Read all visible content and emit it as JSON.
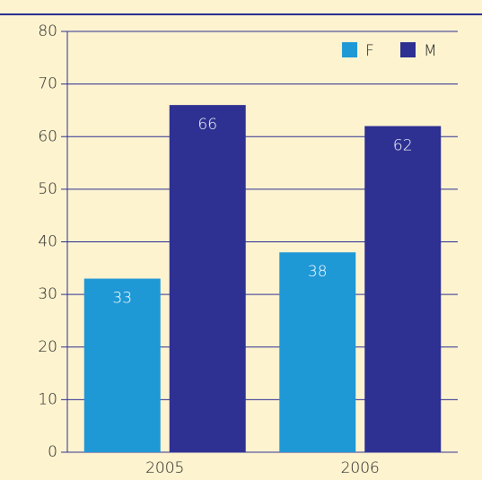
{
  "chart_data": {
    "type": "bar",
    "categories": [
      "2005",
      "2006"
    ],
    "series": [
      {
        "name": "F",
        "color": "#1f98d6",
        "values": [
          33,
          38
        ]
      },
      {
        "name": "M",
        "color": "#2e3192",
        "values": [
          66,
          62
        ]
      }
    ],
    "ylim": [
      0,
      80
    ],
    "yticks": [
      0,
      10,
      20,
      30,
      40,
      50,
      60,
      70,
      80
    ],
    "grid": true,
    "legend": "top-right"
  }
}
